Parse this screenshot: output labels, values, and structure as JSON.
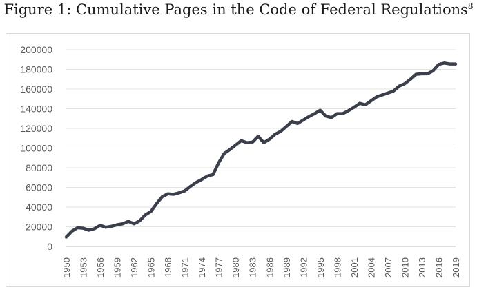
{
  "figure": {
    "title": "Figure 1: Cumulative Pages in the Code of Federal Regulations",
    "footnote_marker": "8"
  },
  "chart_data": {
    "type": "line",
    "title": "",
    "xlabel": "",
    "ylabel": "",
    "ylim": [
      0,
      200000
    ],
    "yticks": [
      0,
      20000,
      40000,
      60000,
      80000,
      100000,
      120000,
      140000,
      160000,
      180000,
      200000
    ],
    "xticks": [
      1950,
      1953,
      1956,
      1959,
      1962,
      1965,
      1968,
      1971,
      1974,
      1977,
      1980,
      1983,
      1986,
      1989,
      1992,
      1995,
      1998,
      2001,
      2004,
      2007,
      2010,
      2013,
      2016,
      2019
    ],
    "grid": "horizontal",
    "legend": "none",
    "line_color": "#3a3f4b",
    "x": [
      1950,
      1951,
      1952,
      1953,
      1954,
      1955,
      1956,
      1957,
      1958,
      1959,
      1960,
      1961,
      1962,
      1963,
      1964,
      1965,
      1966,
      1967,
      1968,
      1969,
      1970,
      1971,
      1972,
      1973,
      1974,
      1975,
      1976,
      1977,
      1978,
      1979,
      1980,
      1981,
      1982,
      1983,
      1984,
      1985,
      1986,
      1987,
      1988,
      1989,
      1990,
      1991,
      1992,
      1993,
      1994,
      1995,
      1996,
      1997,
      1998,
      1999,
      2000,
      2001,
      2002,
      2003,
      2004,
      2005,
      2006,
      2007,
      2008,
      2009,
      2010,
      2011,
      2012,
      2013,
      2014,
      2015,
      2016,
      2017,
      2018,
      2019
    ],
    "series": [
      {
        "values": [
          9500,
          15500,
          19000,
          18500,
          16500,
          18000,
          21500,
          19500,
          20500,
          22000,
          23000,
          25500,
          23000,
          26000,
          32000,
          35500,
          43500,
          50500,
          53500,
          53000,
          54500,
          56500,
          61000,
          65000,
          68000,
          71500,
          73000,
          85000,
          94500,
          98500,
          103000,
          107500,
          105500,
          106000,
          112000,
          105500,
          109000,
          114000,
          117000,
          122000,
          127000,
          125000,
          128500,
          132000,
          135000,
          138500,
          132500,
          131000,
          135000,
          135000,
          138000,
          141500,
          145500,
          144000,
          148000,
          152000,
          154000,
          156000,
          158000,
          163000,
          165500,
          170000,
          175000,
          175500,
          175500,
          178500,
          185000,
          186500,
          185500,
          185500
        ]
      }
    ]
  }
}
